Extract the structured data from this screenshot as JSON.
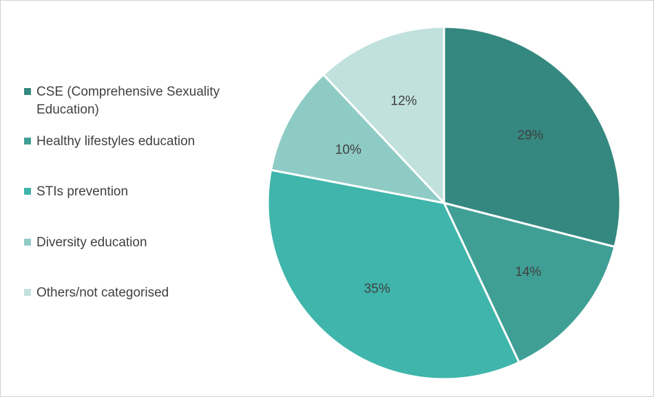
{
  "chart_data": {
    "type": "pie",
    "title": "",
    "categories": [
      "CSE (Comprehensive Sexuality Education)",
      "Healthy lifestyles education",
      "STIs prevention",
      "Diversity education",
      "Others/not categorised"
    ],
    "values": [
      29,
      14,
      35,
      10,
      12
    ],
    "value_labels": [
      "29%",
      "14%",
      "35%",
      "10%",
      "12%"
    ],
    "colors": [
      "#358880",
      "#3f9f95",
      "#3fb5ab",
      "#8fcbc5",
      "#c0e1dd"
    ],
    "legend": {
      "placement": "left",
      "items": [
        {
          "label": "CSE (Comprehensive Sexuality Education)",
          "color": "#358880"
        },
        {
          "label": "Healthy lifestyles education",
          "color": "#3f9f95"
        },
        {
          "label": "STIs prevention",
          "color": "#3fb5ab"
        },
        {
          "label": "Diversity education",
          "color": "#8fcbc5"
        },
        {
          "label": "Others/not categorised",
          "color": "#c0e1dd"
        }
      ]
    }
  }
}
